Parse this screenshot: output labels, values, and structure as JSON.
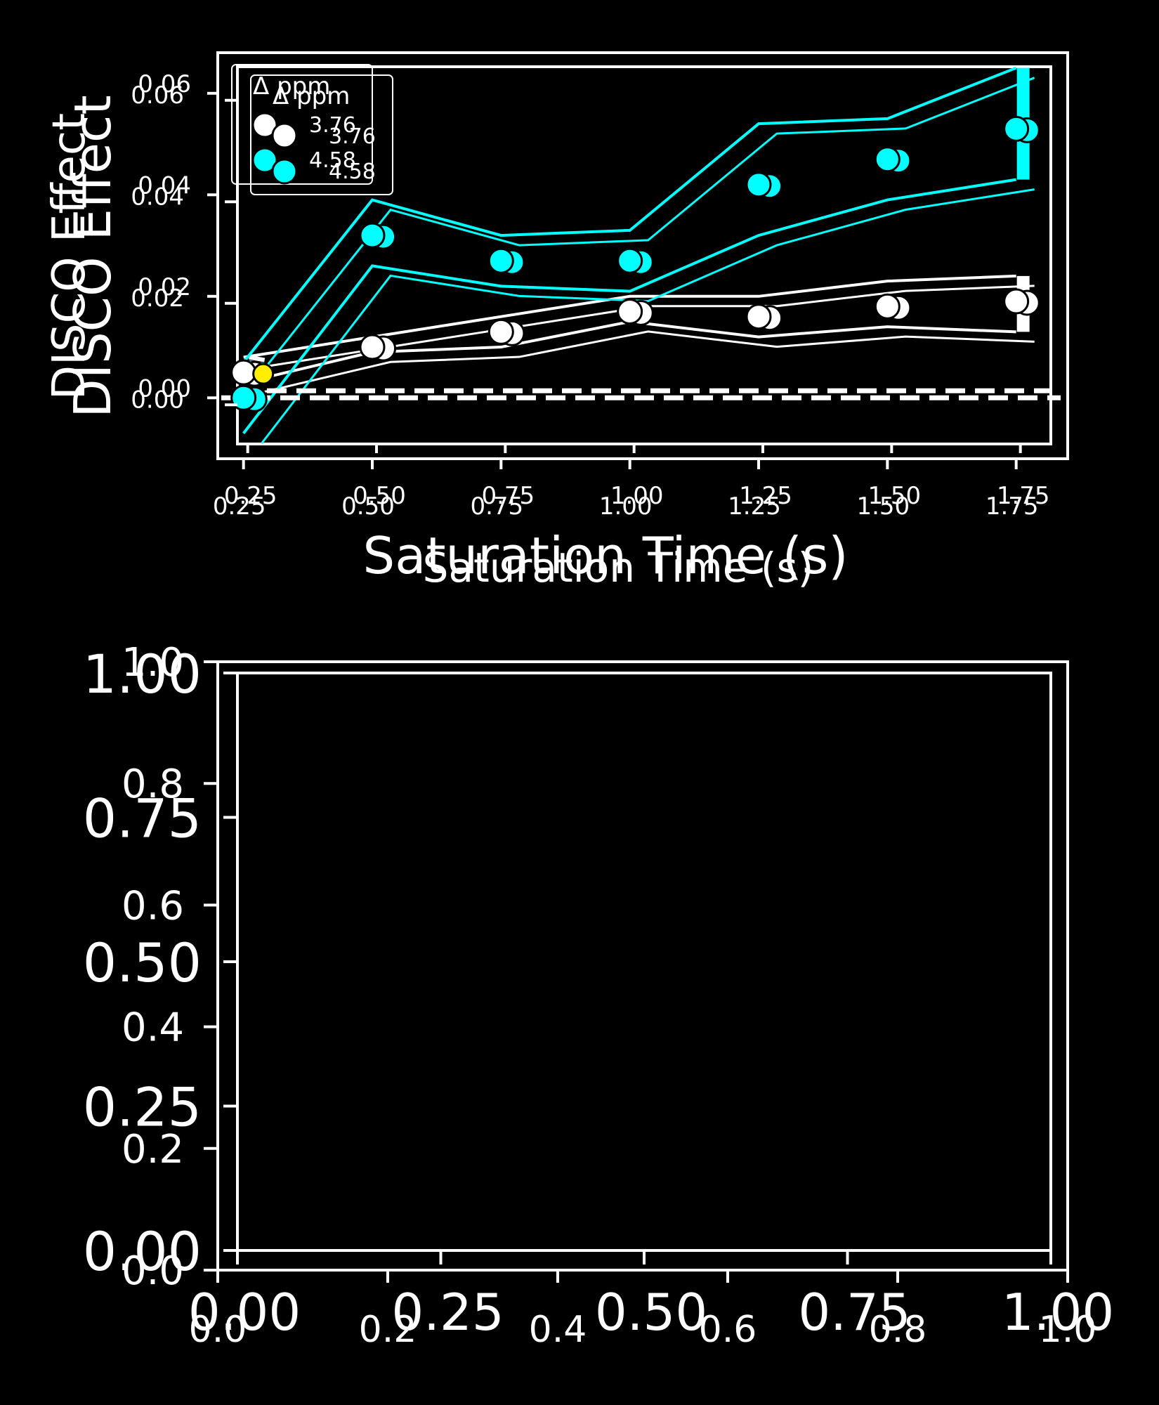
{
  "chart_data": [
    {
      "type": "scatter",
      "title": "",
      "xlabel": "Saturation Time (s)",
      "ylabel": "DISCO Effect",
      "xlim": [
        0.2,
        1.85
      ],
      "ylim": [
        -0.012,
        0.068
      ],
      "xticks": [
        "0.25",
        "0.50",
        "0.75",
        "1.00",
        "1.25",
        "1.50",
        "1.75"
      ],
      "yticks": [
        "0.00",
        "0.02",
        "0.04",
        "0.06"
      ],
      "legend": {
        "title": "Δ ppm",
        "position": "top-left"
      },
      "reference_line": {
        "y": 0,
        "style": "dashed"
      },
      "series": [
        {
          "name": "3.76",
          "color": "#ffffff",
          "x": [
            0.25,
            0.5,
            0.75,
            1.0,
            1.25,
            1.5,
            1.75
          ],
          "y": [
            0.005,
            0.01,
            0.013,
            0.017,
            0.016,
            0.018,
            0.019
          ],
          "band_upper": [
            0.008,
            0.012,
            0.016,
            0.02,
            0.02,
            0.023,
            0.024
          ],
          "band_lower": [
            0.003,
            0.009,
            0.01,
            0.015,
            0.012,
            0.014,
            0.013
          ]
        },
        {
          "name": "4.58",
          "color": "#00ffff",
          "x": [
            0.25,
            0.5,
            0.75,
            1.0,
            1.25,
            1.5,
            1.75
          ],
          "y": [
            0.0,
            0.032,
            0.027,
            0.027,
            0.042,
            0.047,
            0.053
          ],
          "band_upper": [
            0.007,
            0.039,
            0.032,
            0.033,
            0.054,
            0.055,
            0.065
          ],
          "band_lower": [
            -0.007,
            0.026,
            0.022,
            0.021,
            0.032,
            0.039,
            0.043
          ]
        }
      ]
    },
    {
      "type": "scatter",
      "title": "",
      "xlabel": "",
      "ylabel": "",
      "xlim": [
        0,
        1
      ],
      "ylim": [
        0,
        1
      ],
      "xticks": [
        "0.00",
        "0.25",
        "0.50",
        "0.75",
        "1.00"
      ],
      "yticks": [
        "0.00",
        "0.25",
        "0.50",
        "0.75",
        "1.00"
      ],
      "series": []
    }
  ],
  "overlay_axes": {
    "xticks": [
      "0.0",
      "0.2",
      "0.4",
      "0.6",
      "0.8",
      "1.0"
    ],
    "yticks": [
      "0.0",
      "0.2",
      "0.4",
      "0.6",
      "0.8",
      "1.0"
    ]
  }
}
